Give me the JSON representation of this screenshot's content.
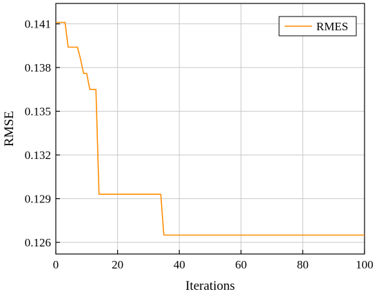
{
  "chart_data": {
    "type": "line",
    "title": "",
    "xlabel": "Iterations",
    "ylabel": "RMSE",
    "xlim": [
      0,
      100
    ],
    "ylim": [
      0.1252,
      0.1424
    ],
    "xticks": [
      0,
      20,
      40,
      60,
      80,
      100
    ],
    "yticks": [
      0.126,
      0.129,
      0.132,
      0.135,
      0.138,
      0.141
    ],
    "ytick_labels": [
      "0.126",
      "0.129",
      "0.132",
      "0.135",
      "0.138",
      "0.141"
    ],
    "grid": true,
    "legend_position": "top-right",
    "series": [
      {
        "name": "RMES",
        "color": "#FF8C00",
        "x": [
          0,
          3,
          4,
          7,
          8,
          9,
          10,
          11,
          13,
          14,
          34,
          35,
          100
        ],
        "y": [
          0.1411,
          0.1411,
          0.1394,
          0.1394,
          0.1386,
          0.1376,
          0.1376,
          0.1365,
          0.1365,
          0.1293,
          0.1293,
          0.1265,
          0.1265
        ]
      }
    ]
  }
}
